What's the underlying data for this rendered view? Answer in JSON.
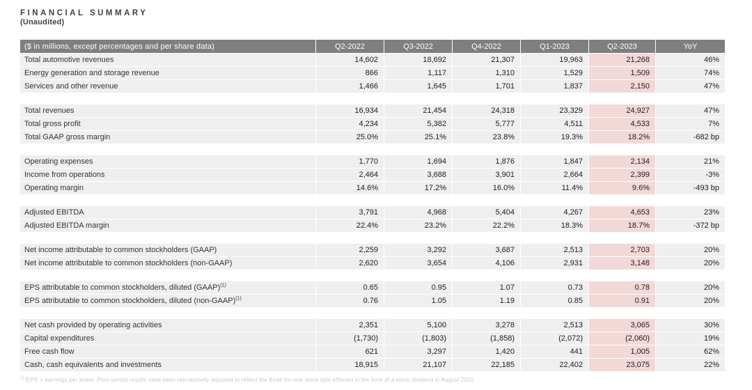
{
  "title": "FINANCIAL SUMMARY",
  "subtitle": "(Unaudited)",
  "table": {
    "label_header": "($ in millions, except percentages and per share data)",
    "columns": [
      "Q2-2022",
      "Q3-2022",
      "Q4-2022",
      "Q1-2023",
      "Q2-2023",
      "YoY"
    ],
    "highlight_column": "Q2-2023",
    "sections": [
      {
        "rows": [
          {
            "label": "Total automotive revenues",
            "values": [
              "14,602",
              "18,692",
              "21,307",
              "19,963",
              "21,268",
              "46%"
            ]
          },
          {
            "label": "Energy generation and storage revenue",
            "values": [
              "866",
              "1,117",
              "1,310",
              "1,529",
              "1,509",
              "74%"
            ]
          },
          {
            "label": "Services and other revenue",
            "values": [
              "1,466",
              "1,645",
              "1,701",
              "1,837",
              "2,150",
              "47%"
            ]
          }
        ]
      },
      {
        "rows": [
          {
            "label": "Total revenues",
            "values": [
              "16,934",
              "21,454",
              "24,318",
              "23,329",
              "24,927",
              "47%"
            ]
          },
          {
            "label": "Total gross profit",
            "values": [
              "4,234",
              "5,382",
              "5,777",
              "4,511",
              "4,533",
              "7%"
            ]
          },
          {
            "label": "Total GAAP gross margin",
            "values": [
              "25.0%",
              "25.1%",
              "23.8%",
              "19.3%",
              "18.2%",
              "-682 bp"
            ]
          }
        ]
      },
      {
        "rows": [
          {
            "label": "Operating expenses",
            "values": [
              "1,770",
              "1,694",
              "1,876",
              "1,847",
              "2,134",
              "21%"
            ]
          },
          {
            "label": "Income from operations",
            "values": [
              "2,464",
              "3,688",
              "3,901",
              "2,664",
              "2,399",
              "-3%"
            ]
          },
          {
            "label": "Operating margin",
            "values": [
              "14.6%",
              "17.2%",
              "16.0%",
              "11.4%",
              "9.6%",
              "-493 bp"
            ]
          }
        ]
      },
      {
        "rows": [
          {
            "label": "Adjusted EBITDA",
            "values": [
              "3,791",
              "4,968",
              "5,404",
              "4,267",
              "4,653",
              "23%"
            ]
          },
          {
            "label": "Adjusted EBITDA margin",
            "values": [
              "22.4%",
              "23.2%",
              "22.2%",
              "18.3%",
              "18.7%",
              "-372 bp"
            ]
          }
        ]
      },
      {
        "rows": [
          {
            "label": "Net income attributable to common stockholders (GAAP)",
            "values": [
              "2,259",
              "3,292",
              "3,687",
              "2,513",
              "2,703",
              "20%"
            ]
          },
          {
            "label": "Net income attributable to common stockholders (non-GAAP)",
            "values": [
              "2,620",
              "3,654",
              "4,106",
              "2,931",
              "3,148",
              "20%"
            ]
          }
        ]
      },
      {
        "rows": [
          {
            "label": "EPS attributable to common stockholders, diluted (GAAP)",
            "sup": "(1)",
            "values": [
              "0.65",
              "0.95",
              "1.07",
              "0.73",
              "0.78",
              "20%"
            ]
          },
          {
            "label": "EPS attributable to common stockholders, diluted (non-GAAP)",
            "sup": "(1)",
            "values": [
              "0.76",
              "1.05",
              "1.19",
              "0.85",
              "0.91",
              "20%"
            ]
          }
        ]
      },
      {
        "rows": [
          {
            "label": "Net cash provided by operating activities",
            "values": [
              "2,351",
              "5,100",
              "3,278",
              "2,513",
              "3,065",
              "30%"
            ]
          },
          {
            "label": "Capital expenditures",
            "values": [
              "(1,730)",
              "(1,803)",
              "(1,858)",
              "(2,072)",
              "(2,060)",
              "19%"
            ]
          },
          {
            "label": "Free cash flow",
            "values": [
              "621",
              "3,297",
              "1,420",
              "441",
              "1,005",
              "62%"
            ]
          },
          {
            "label": "Cash, cash equivalents and investments",
            "values": [
              "18,915",
              "21,107",
              "22,185",
              "22,402",
              "23,075",
              "22%"
            ]
          }
        ]
      }
    ]
  },
  "footnote": {
    "sup": "(1)",
    "text": "EPS = earnings per share. Prior period results have been retroactively adjusted to reflect the three-for-one stock split effected in the form of a stock dividend in August 2022."
  },
  "colors": {
    "header_bg": "#7f7f7f",
    "header_text": "#ffffff",
    "row_bg": "#efefef",
    "highlight_bg": "#f3d8d8",
    "label_text": "#333333",
    "value_text": "#1c1c1c",
    "title_text": "#3f3f3f",
    "footnote_text": "#c6c6c6"
  }
}
